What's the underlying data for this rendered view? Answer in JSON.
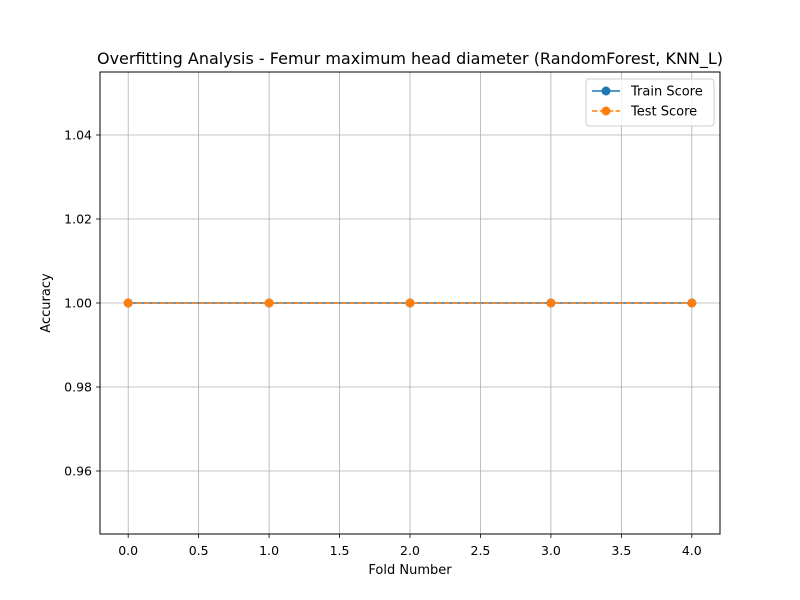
{
  "chart_data": {
    "type": "line",
    "title": "Overfitting Analysis - Femur maximum head diameter (RandomForest, KNN_L)",
    "xlabel": "Fold Number",
    "ylabel": "Accuracy",
    "xlim": [
      -0.2,
      4.2
    ],
    "ylim": [
      0.945,
      1.055
    ],
    "xticks": [
      0.0,
      0.5,
      1.0,
      1.5,
      2.0,
      2.5,
      3.0,
      3.5,
      4.0
    ],
    "xtick_labels": [
      "0.0",
      "0.5",
      "1.0",
      "1.5",
      "2.0",
      "2.5",
      "3.0",
      "3.5",
      "4.0"
    ],
    "yticks": [
      0.96,
      0.98,
      1.0,
      1.02,
      1.04
    ],
    "ytick_labels": [
      "0.96",
      "0.98",
      "1.00",
      "1.02",
      "1.04"
    ],
    "grid": true,
    "legend_position": "top-right",
    "x": [
      0,
      1,
      2,
      3,
      4
    ],
    "series": [
      {
        "name": "Train Score",
        "values": [
          1.0,
          1.0,
          1.0,
          1.0,
          1.0
        ],
        "color": "#1f77b4",
        "line_style": "solid",
        "marker": "circle"
      },
      {
        "name": "Test Score",
        "values": [
          1.0,
          1.0,
          1.0,
          1.0,
          1.0
        ],
        "color": "#ff7f0e",
        "line_style": "dashed",
        "marker": "circle"
      }
    ]
  }
}
